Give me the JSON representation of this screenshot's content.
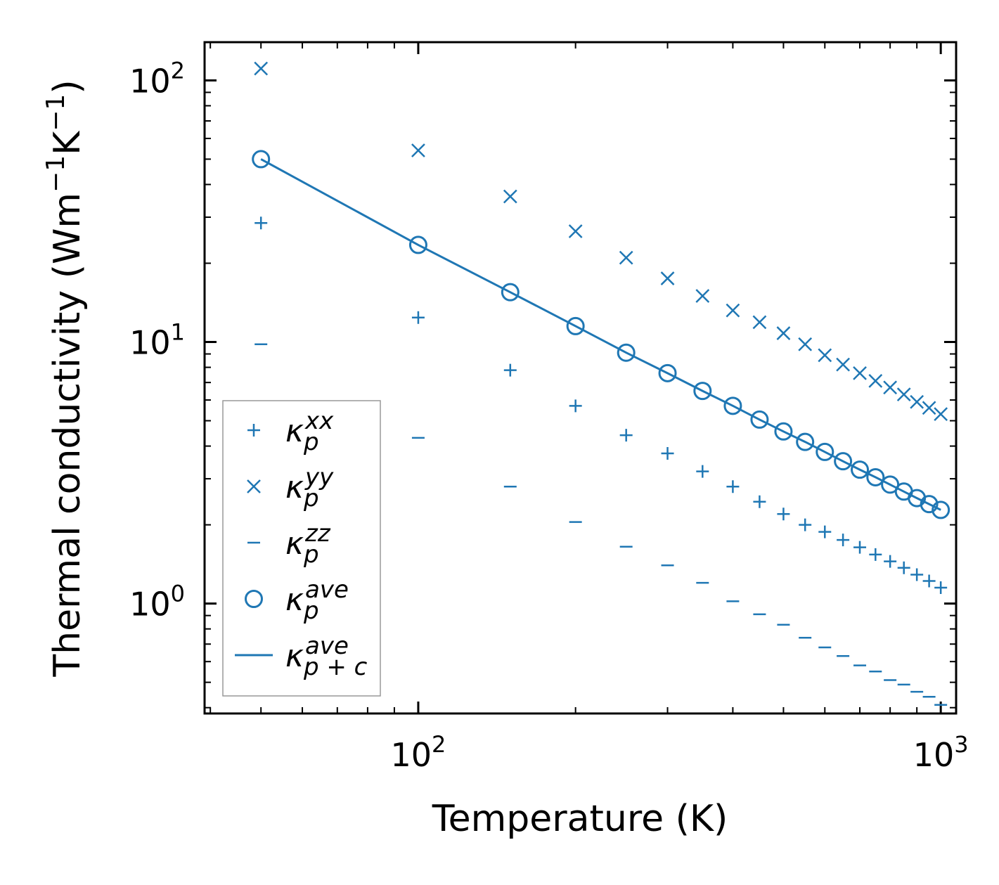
{
  "chart_data": {
    "type": "scatter",
    "xscale": "log",
    "yscale": "log",
    "xlabel": "Temperature (K)",
    "ylabel": {
      "text": "Thermal conductivity (Wm",
      "sup1": "−1",
      "mid": "K",
      "sup2": "−1",
      "close": ")"
    },
    "xlim": [
      39,
      1070
    ],
    "ylim": [
      0.38,
      140
    ],
    "xticks": [
      {
        "base": "10",
        "exp": "2",
        "value": 100
      },
      {
        "base": "10",
        "exp": "3",
        "value": 1000
      }
    ],
    "yticks": [
      {
        "base": "10",
        "exp": "0",
        "value": 1
      },
      {
        "base": "10",
        "exp": "1",
        "value": 10
      },
      {
        "base": "10",
        "exp": "2",
        "value": 100
      }
    ],
    "color": "#1f77b4",
    "x": [
      50,
      100,
      150,
      200,
      250,
      300,
      350,
      400,
      450,
      500,
      550,
      600,
      650,
      700,
      750,
      800,
      850,
      900,
      950,
      1000
    ],
    "series": [
      {
        "name": "κ_p^xx",
        "marker": "plus",
        "values": [
          28.5,
          12.4,
          7.8,
          5.7,
          4.4,
          3.75,
          3.2,
          2.8,
          2.45,
          2.2,
          2.0,
          1.88,
          1.75,
          1.64,
          1.54,
          1.45,
          1.37,
          1.29,
          1.22,
          1.15
        ]
      },
      {
        "name": "κ_p^yy",
        "marker": "x",
        "values": [
          111,
          54,
          36,
          26.5,
          21,
          17.5,
          15,
          13.2,
          11.9,
          10.8,
          9.8,
          8.9,
          8.2,
          7.6,
          7.1,
          6.7,
          6.3,
          5.9,
          5.6,
          5.3
        ]
      },
      {
        "name": "κ_p^zz",
        "marker": "dash",
        "values": [
          9.8,
          4.3,
          2.8,
          2.05,
          1.65,
          1.4,
          1.2,
          1.02,
          0.91,
          0.83,
          0.74,
          0.68,
          0.63,
          0.58,
          0.55,
          0.51,
          0.49,
          0.46,
          0.44,
          0.41
        ]
      },
      {
        "name": "κ_p^ave",
        "marker": "circle",
        "values": [
          50,
          23.5,
          15.5,
          11.5,
          9.1,
          7.6,
          6.5,
          5.7,
          5.05,
          4.55,
          4.15,
          3.8,
          3.5,
          3.25,
          3.04,
          2.85,
          2.68,
          2.53,
          2.4,
          2.28
        ]
      },
      {
        "name": "κ_{p+c}^ave",
        "marker": "line",
        "values": [
          50,
          23.5,
          15.5,
          11.5,
          9.1,
          7.6,
          6.5,
          5.7,
          5.05,
          4.55,
          4.15,
          3.8,
          3.5,
          3.25,
          3.04,
          2.85,
          2.68,
          2.53,
          2.4,
          2.28
        ]
      }
    ],
    "legend": {
      "placement": "lower-left",
      "entries": [
        {
          "marker": "plus",
          "symbol": "κ",
          "sub": "p",
          "sup": "xx"
        },
        {
          "marker": "x",
          "symbol": "κ",
          "sub": "p",
          "sup": "yy"
        },
        {
          "marker": "dash",
          "symbol": "κ",
          "sub": "p",
          "sup": "zz"
        },
        {
          "marker": "circle",
          "symbol": "κ",
          "sub": "p",
          "sup": "ave"
        },
        {
          "marker": "line",
          "symbol": "κ",
          "sub": "p + c",
          "sup": "ave"
        }
      ]
    }
  }
}
